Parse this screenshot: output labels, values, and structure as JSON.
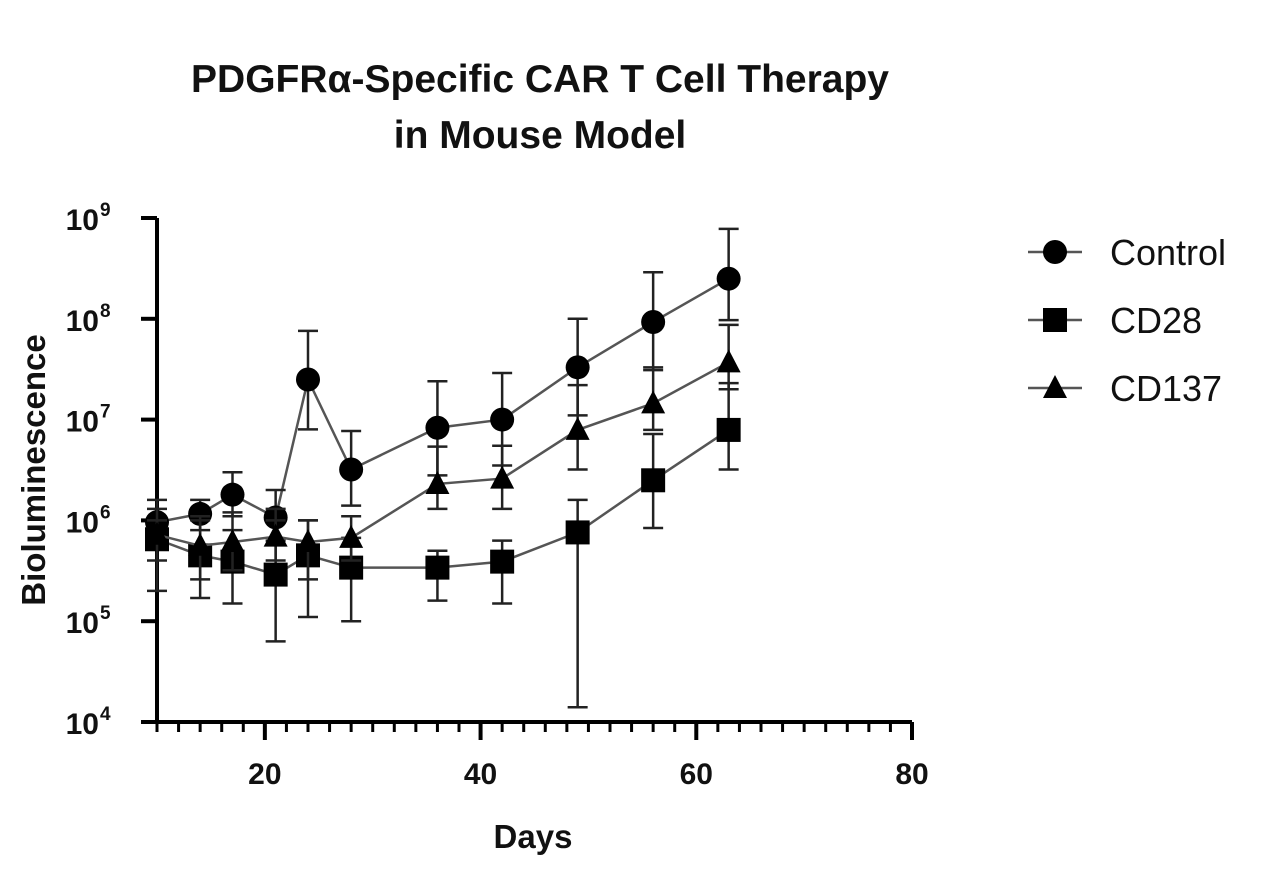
{
  "chart_data": {
    "type": "line",
    "title": [
      "PDGFRα-Specific CAR T Cell Therapy",
      "in Mouse Model"
    ],
    "xlabel": "Days",
    "ylabel": "Bioluminescence",
    "xlim": [
      10,
      80
    ],
    "ylim": [
      10000,
      1000000000
    ],
    "yscale": "log",
    "xticks": [
      20,
      40,
      60,
      80
    ],
    "xtick_labels": [
      "20",
      "40",
      "60",
      "80"
    ],
    "yticks": [
      {
        "base": "10",
        "exp": "9",
        "value": 1000000000
      },
      {
        "base": "10",
        "exp": "8",
        "value": 100000000
      },
      {
        "base": "10",
        "exp": "7",
        "value": 10000000
      },
      {
        "base": "10",
        "exp": "6",
        "value": 1000000
      },
      {
        "base": "10",
        "exp": "5",
        "value": 100000
      },
      {
        "base": "10",
        "exp": "4",
        "value": 10000
      }
    ],
    "grid": false,
    "legend_position": "right",
    "x": [
      10,
      14,
      17,
      21,
      24,
      28,
      36,
      42,
      49,
      56,
      63
    ],
    "series": [
      {
        "name": "Control",
        "marker": "circle",
        "values": [
          960000,
          1160000,
          1800000,
          1070000,
          25000000,
          3200000,
          8300000,
          10000000,
          33000000,
          93000000,
          250000000
        ],
        "err_high": [
          1600000,
          1600000,
          3000000,
          2000000,
          76000000,
          7700000,
          24000000,
          29000000,
          100000000,
          290000000,
          780000000
        ],
        "err_low": [
          560000,
          800000,
          1100000,
          630000,
          8000000,
          1400000,
          2800000,
          3500000,
          11000000,
          31000000,
          97000000
        ]
      },
      {
        "name": "CD28",
        "marker": "square",
        "values": [
          650000,
          450000,
          390000,
          290000,
          450000,
          340000,
          340000,
          390000,
          760000,
          2500000,
          7900000
        ],
        "err_high": [
          1000000,
          1000000,
          800000,
          1000000,
          1000000,
          670000,
          500000,
          630000,
          1600000,
          7200000,
          23000000
        ],
        "err_low": [
          200000,
          170000,
          150000,
          63000,
          110000,
          100000,
          160000,
          150000,
          14000,
          840000,
          3200000
        ]
      },
      {
        "name": "CD137",
        "marker": "triangle",
        "values": [
          720000,
          560000,
          610000,
          690000,
          610000,
          670000,
          2300000,
          2600000,
          7900000,
          14500000,
          37000000
        ],
        "err_high": [
          1300000,
          1100000,
          1200000,
          1300000,
          1000000,
          1100000,
          5400000,
          5500000,
          22000000,
          33000000,
          87000000
        ],
        "err_low": [
          400000,
          260000,
          320000,
          400000,
          260000,
          400000,
          1300000,
          1300000,
          3200000,
          7900000,
          20000000
        ]
      }
    ]
  }
}
